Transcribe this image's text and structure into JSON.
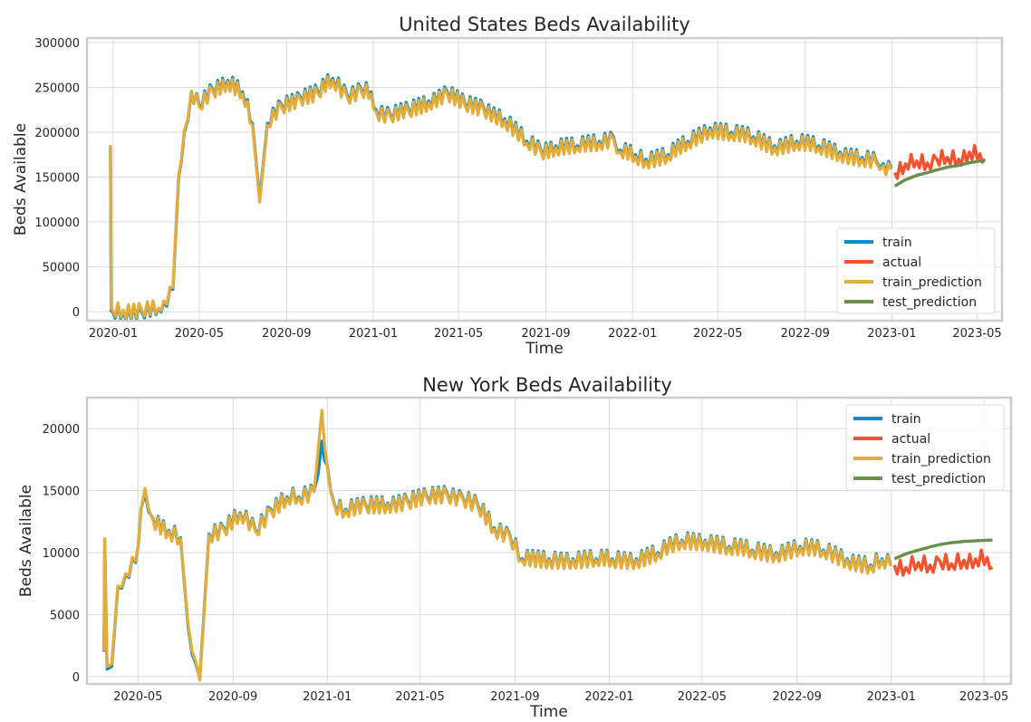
{
  "colors": {
    "train": "#0f89c7",
    "actual": "#f5532f",
    "train_prediction": "#e3ac3b",
    "test_prediction": "#6b8e4a",
    "grid": "#d9d9d9",
    "frame": "#cccccc"
  },
  "chart_data": [
    {
      "type": "line",
      "title": "United States Beds Availability",
      "xlabel": "Time",
      "ylabel": "Beds Available",
      "xlim": [
        "2019-11-25",
        "2023-06-05"
      ],
      "ylim": [
        -10000,
        305000
      ],
      "x_ticks": [
        "2020-01",
        "2020-05",
        "2020-09",
        "2021-01",
        "2021-05",
        "2021-09",
        "2022-01",
        "2022-05",
        "2022-09",
        "2023-01",
        "2023-05"
      ],
      "y_ticks": [
        0,
        50000,
        100000,
        150000,
        200000,
        250000,
        300000
      ],
      "y_tick_labels": [
        "0",
        "50000",
        "100000",
        "150000",
        "200000",
        "250000",
        "300000"
      ],
      "grid": true,
      "legend_position": "lower-right",
      "series": [
        {
          "name": "train",
          "x": [
            "2019-12-28",
            "2019-12-29",
            "2019-12-31",
            "2020-01-15",
            "2020-02-10",
            "2020-03-05",
            "2020-03-12",
            "2020-03-25",
            "2020-04-02",
            "2020-04-10",
            "2020-04-20",
            "2020-05-01",
            "2020-05-20",
            "2020-06-10",
            "2020-07-01",
            "2020-07-15",
            "2020-07-25",
            "2020-08-05",
            "2020-08-25",
            "2020-09-20",
            "2020-10-15",
            "2020-11-05",
            "2020-11-25",
            "2020-12-15",
            "2020-12-29",
            "2021-01-05",
            "2021-01-25",
            "2021-02-20",
            "2021-03-20",
            "2021-04-15",
            "2021-05-10",
            "2021-06-05",
            "2021-07-05",
            "2021-08-05",
            "2021-08-25",
            "2021-09-15",
            "2021-10-15",
            "2021-11-15",
            "2021-12-05",
            "2021-12-15",
            "2022-01-05",
            "2022-01-20",
            "2022-02-20",
            "2022-03-20",
            "2022-04-20",
            "2022-05-20",
            "2022-06-20",
            "2022-07-20",
            "2022-08-20",
            "2022-09-20",
            "2022-10-20",
            "2022-11-20",
            "2022-12-10",
            "2022-12-20",
            "2022-12-31"
          ],
          "values": [
            184000,
            1000,
            0,
            0,
            0,
            3000,
            10000,
            25000,
            150000,
            200000,
            245000,
            230000,
            248000,
            258000,
            245000,
            210000,
            125000,
            210000,
            230000,
            240000,
            245000,
            260000,
            242000,
            248000,
            245000,
            225000,
            220000,
            225000,
            235000,
            245000,
            232000,
            228000,
            215000,
            190000,
            180000,
            185000,
            185000,
            190000,
            195000,
            180000,
            175000,
            170000,
            175000,
            190000,
            205000,
            200000,
            195000,
            185000,
            190000,
            185000,
            178000,
            172000,
            168000,
            165000,
            160000
          ]
        },
        {
          "name": "actual",
          "x": [
            "2023-01-05",
            "2023-01-20",
            "2023-02-05",
            "2023-02-20",
            "2023-03-05",
            "2023-03-20",
            "2023-04-05",
            "2023-04-20",
            "2023-05-05",
            "2023-05-12"
          ],
          "values": [
            155000,
            165000,
            168000,
            166000,
            170000,
            172000,
            170000,
            178000,
            176000,
            170000
          ]
        },
        {
          "name": "train_prediction",
          "x": [
            "2019-12-28",
            "2019-12-29",
            "2019-12-31",
            "2020-01-15",
            "2020-02-10",
            "2020-03-05",
            "2020-03-12",
            "2020-03-25",
            "2020-04-02",
            "2020-04-10",
            "2020-04-20",
            "2020-05-01",
            "2020-05-20",
            "2020-06-10",
            "2020-07-01",
            "2020-07-15",
            "2020-07-25",
            "2020-08-05",
            "2020-08-25",
            "2020-09-20",
            "2020-10-15",
            "2020-11-05",
            "2020-11-25",
            "2020-12-15",
            "2020-12-29",
            "2021-01-05",
            "2021-01-25",
            "2021-02-20",
            "2021-03-20",
            "2021-04-15",
            "2021-05-10",
            "2021-06-05",
            "2021-07-05",
            "2021-08-05",
            "2021-08-25",
            "2021-09-15",
            "2021-10-15",
            "2021-11-15",
            "2021-12-05",
            "2021-12-15",
            "2022-01-05",
            "2022-01-20",
            "2022-02-20",
            "2022-03-20",
            "2022-04-20",
            "2022-05-20",
            "2022-06-20",
            "2022-07-20",
            "2022-08-20",
            "2022-09-20",
            "2022-10-20",
            "2022-11-20",
            "2022-12-10",
            "2022-12-20",
            "2022-12-31"
          ],
          "values": [
            186000,
            3000,
            2000,
            2000,
            2000,
            4000,
            12000,
            27000,
            152000,
            202000,
            246000,
            228000,
            246000,
            256000,
            243000,
            208000,
            122000,
            208000,
            228000,
            238000,
            243000,
            258000,
            240000,
            246000,
            243000,
            223000,
            218000,
            223000,
            233000,
            243000,
            230000,
            226000,
            213000,
            188000,
            178000,
            183000,
            183000,
            188000,
            193000,
            178000,
            173000,
            168000,
            173000,
            188000,
            203000,
            198000,
            193000,
            183000,
            188000,
            183000,
            176000,
            170000,
            166000,
            163000,
            158000
          ]
        },
        {
          "name": "test_prediction",
          "x": [
            "2023-01-05",
            "2023-01-20",
            "2023-02-05",
            "2023-02-20",
            "2023-03-05",
            "2023-03-20",
            "2023-04-05",
            "2023-04-20",
            "2023-05-05",
            "2023-05-12"
          ],
          "values": [
            140000,
            147000,
            152000,
            155000,
            158000,
            161000,
            163000,
            166000,
            168000,
            169000
          ]
        }
      ]
    },
    {
      "type": "line",
      "title": "New York Beds Availability",
      "xlabel": "Time",
      "ylabel": "Beds Available",
      "xlim": [
        "2020-02-25",
        "2023-06-05"
      ],
      "ylim": [
        -600,
        22500
      ],
      "x_ticks": [
        "2020-05",
        "2020-09",
        "2021-01",
        "2021-05",
        "2021-09",
        "2022-01",
        "2022-05",
        "2022-09",
        "2023-01",
        "2023-05"
      ],
      "y_ticks": [
        0,
        5000,
        10000,
        15000,
        20000
      ],
      "y_tick_labels": [
        "0",
        "5000",
        "10000",
        "15000",
        "20000"
      ],
      "grid": true,
      "legend_position": "upper-right",
      "series": [
        {
          "name": "train",
          "x": [
            "2020-03-18",
            "2020-03-19",
            "2020-03-22",
            "2020-03-28",
            "2020-04-05",
            "2020-04-15",
            "2020-04-28",
            "2020-05-05",
            "2020-05-10",
            "2020-05-20",
            "2020-06-10",
            "2020-06-25",
            "2020-07-05",
            "2020-07-15",
            "2020-07-20",
            "2020-08-01",
            "2020-08-20",
            "2020-09-10",
            "2020-09-30",
            "2020-10-20",
            "2020-11-10",
            "2020-11-25",
            "2020-12-15",
            "2020-12-25",
            "2021-01-01",
            "2021-01-10",
            "2021-01-25",
            "2021-02-20",
            "2021-03-20",
            "2021-04-15",
            "2021-05-10",
            "2021-06-05",
            "2021-06-25",
            "2021-07-15",
            "2021-08-05",
            "2021-08-25",
            "2021-09-10",
            "2021-10-15",
            "2021-11-15",
            "2021-12-15",
            "2022-01-05",
            "2022-02-05",
            "2022-03-05",
            "2022-04-05",
            "2022-05-05",
            "2022-06-05",
            "2022-07-05",
            "2022-08-05",
            "2022-09-05",
            "2022-10-05",
            "2022-11-05",
            "2022-12-05",
            "2022-12-20",
            "2022-12-31"
          ],
          "values": [
            2000,
            11000,
            600,
            800,
            7200,
            8200,
            9200,
            13500,
            14800,
            12800,
            11800,
            11200,
            4000,
            1000,
            -200,
            11500,
            12000,
            13200,
            11800,
            13500,
            14500,
            14500,
            15000,
            19000,
            17000,
            14000,
            13500,
            13800,
            14000,
            14200,
            14500,
            14800,
            14500,
            13800,
            12000,
            11500,
            9500,
            9500,
            9500,
            9500,
            9500,
            9500,
            10000,
            11000,
            11000,
            10500,
            10200,
            10000,
            10500,
            10200,
            9500,
            9000,
            9500,
            9000
          ]
        },
        {
          "name": "actual",
          "x": [
            "2023-01-05",
            "2023-01-20",
            "2023-02-05",
            "2023-02-20",
            "2023-03-05",
            "2023-03-20",
            "2023-04-05",
            "2023-04-20",
            "2023-05-05",
            "2023-05-12"
          ],
          "values": [
            9000,
            8800,
            9200,
            9000,
            9300,
            9100,
            9400,
            9500,
            9600,
            8800
          ]
        },
        {
          "name": "train_prediction",
          "x": [
            "2020-03-18",
            "2020-03-19",
            "2020-03-22",
            "2020-03-28",
            "2020-04-05",
            "2020-04-15",
            "2020-04-28",
            "2020-05-05",
            "2020-05-10",
            "2020-05-20",
            "2020-06-10",
            "2020-06-25",
            "2020-07-05",
            "2020-07-15",
            "2020-07-20",
            "2020-08-01",
            "2020-08-20",
            "2020-09-10",
            "2020-09-30",
            "2020-10-20",
            "2020-11-10",
            "2020-11-25",
            "2020-12-15",
            "2020-12-25",
            "2021-01-01",
            "2021-01-10",
            "2021-01-25",
            "2021-02-20",
            "2021-03-20",
            "2021-04-15",
            "2021-05-10",
            "2021-06-05",
            "2021-06-25",
            "2021-07-15",
            "2021-08-05",
            "2021-08-25",
            "2021-09-10",
            "2021-10-15",
            "2021-11-15",
            "2021-12-15",
            "2022-01-05",
            "2022-02-05",
            "2022-03-05",
            "2022-04-05",
            "2022-05-05",
            "2022-06-05",
            "2022-07-05",
            "2022-08-05",
            "2022-09-05",
            "2022-10-05",
            "2022-11-05",
            "2022-12-05",
            "2022-12-20",
            "2022-12-31"
          ],
          "values": [
            2100,
            11100,
            800,
            1000,
            7300,
            8300,
            9300,
            13400,
            15200,
            12700,
            11700,
            11100,
            4200,
            1200,
            -300,
            11400,
            11900,
            13100,
            11700,
            13400,
            14400,
            14400,
            14900,
            21500,
            16900,
            13900,
            13400,
            13700,
            13900,
            14100,
            14400,
            14700,
            14400,
            13700,
            11900,
            11400,
            9400,
            9400,
            9400,
            9400,
            9400,
            9400,
            9900,
            10900,
            10900,
            10400,
            10100,
            9900,
            10400,
            10100,
            9400,
            8900,
            9400,
            8900
          ]
        },
        {
          "name": "test_prediction",
          "x": [
            "2023-01-05",
            "2023-01-20",
            "2023-02-05",
            "2023-02-20",
            "2023-03-05",
            "2023-03-20",
            "2023-04-05",
            "2023-04-20",
            "2023-05-05",
            "2023-05-12"
          ],
          "values": [
            9500,
            9900,
            10200,
            10450,
            10650,
            10800,
            10900,
            10950,
            11000,
            11000
          ]
        }
      ]
    }
  ]
}
